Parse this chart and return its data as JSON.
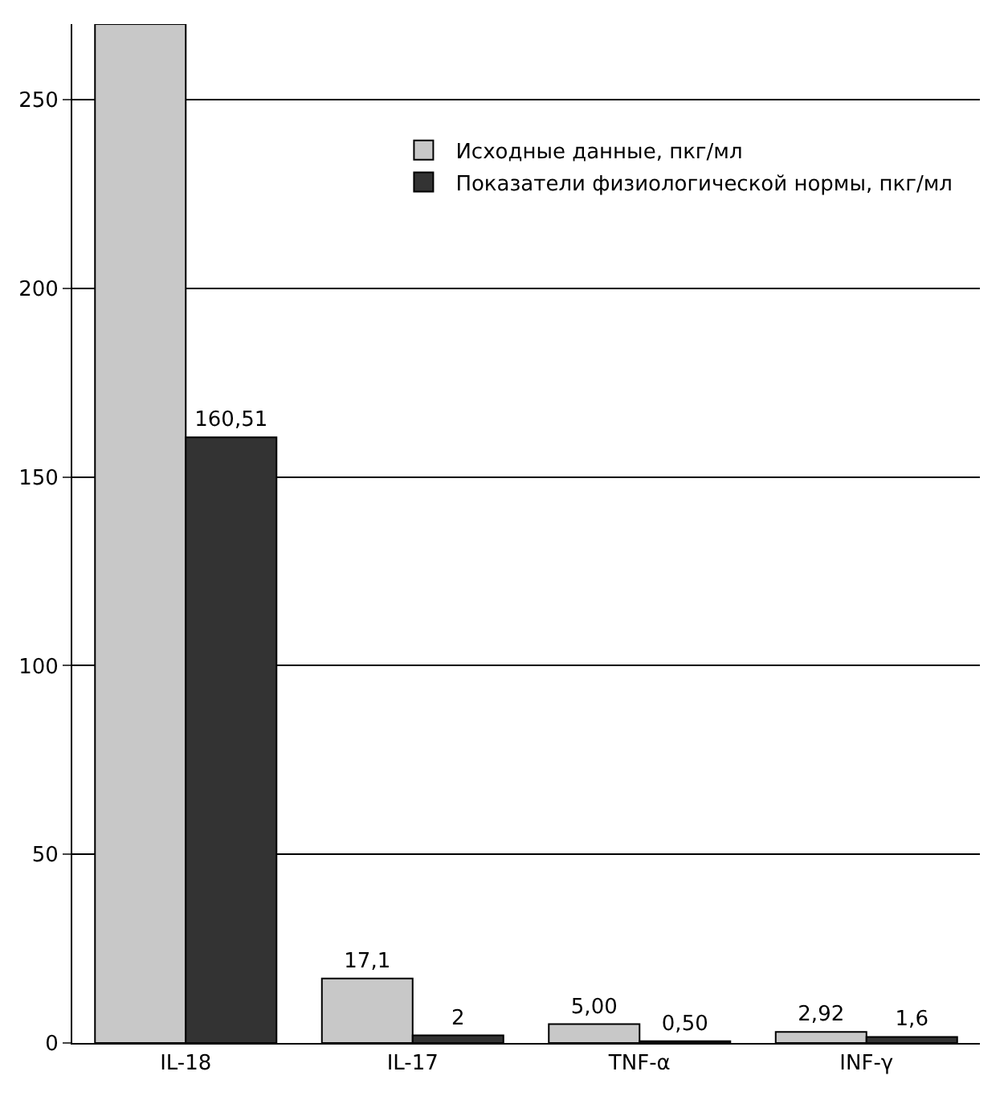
{
  "chart_data": {
    "type": "bar",
    "categories": [
      "IL-18",
      "IL-17",
      "TNF-α",
      "INF-γ"
    ],
    "series": [
      {
        "name": "Исходные данные, пкг/мл",
        "color": "#c8c8c8",
        "values": [
          270,
          17.1,
          5.0,
          2.92
        ],
        "value_labels": [
          null,
          "17,1",
          "5,00",
          "2,92"
        ]
      },
      {
        "name": "Показатели физиологической нормы, пкг/мл",
        "color": "#333333",
        "values": [
          160.51,
          2,
          0.5,
          1.6
        ],
        "value_labels": [
          "160,51",
          "2",
          "0,50",
          "1,6"
        ]
      }
    ],
    "ylim": [
      0,
      270
    ],
    "yticks": [
      0,
      50,
      100,
      150,
      200,
      250
    ],
    "grid": "y",
    "legend": "top right"
  }
}
